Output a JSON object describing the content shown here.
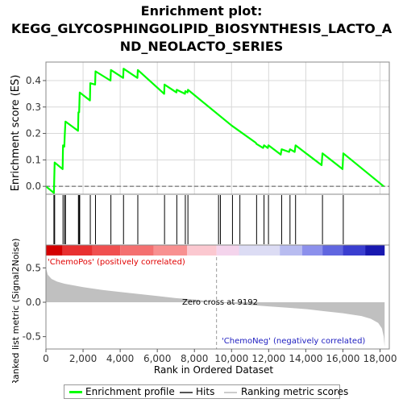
{
  "title": {
    "line1": "Enrichment plot:",
    "line2": "KEGG_GLYCOSPHINGOLIPID_BIOSYNTHESIS_LACTO_A",
    "line3": "ND_NEOLACTO_SERIES"
  },
  "colors": {
    "profile": "#00ff00",
    "metric_fill": "#c0c0c0",
    "hit": "#000000",
    "pos_label": "#e00000",
    "neg_label": "#2020c0",
    "zero_line": "#999999",
    "grid": "#d8d8d8"
  },
  "legend": {
    "profile": "Enrichment profile",
    "hits": "Hits",
    "metric": "Ranking metric scores"
  },
  "annotations": {
    "pos": "'ChemoPos' (positively correlated)",
    "neg": "'ChemoNeg' (negatively correlated)",
    "zero_cross": "Zero cross at 9192"
  },
  "chart_data": {
    "type": "line",
    "xlabel": "Rank in Ordered Dataset",
    "xlim": [
      0,
      18500
    ],
    "x_ticks": [
      0,
      2000,
      4000,
      6000,
      8000,
      10000,
      12000,
      14000,
      16000,
      18000
    ],
    "x_tick_labels": [
      "0",
      "2,000",
      "4,000",
      "6,000",
      "8,000",
      "10,000",
      "12,000",
      "14,000",
      "16,000",
      "18,000"
    ],
    "zero_cross": 9192,
    "max_rank": 18250,
    "es_panel": {
      "ylabel": "Enrichment score (ES)",
      "ylim": [
        -0.03,
        0.47
      ],
      "y_ticks": [
        0.0,
        0.1,
        0.2,
        0.3,
        0.4
      ],
      "y_tick_labels": [
        "0.0",
        "0.1",
        "0.2",
        "0.3",
        "0.4"
      ],
      "series": [
        {
          "name": "Enrichment profile",
          "x": [
            0,
            430,
            470,
            900,
            920,
            990,
            1010,
            1050,
            1730,
            1750,
            1790,
            1820,
            2370,
            2390,
            2650,
            2670,
            3480,
            3500,
            4160,
            4180,
            4930,
            4950,
            6370,
            6390,
            7030,
            7050,
            7490,
            7510,
            7630,
            7650,
            10000,
            11300,
            11350,
            11700,
            11750,
            11950,
            11990,
            12650,
            12700,
            13100,
            13150,
            13400,
            13450,
            14850,
            14900,
            15980,
            16020,
            18200
          ],
          "y": [
            0.0,
            -0.025,
            0.09,
            0.065,
            0.155,
            0.15,
            0.19,
            0.245,
            0.21,
            0.28,
            0.28,
            0.355,
            0.325,
            0.39,
            0.385,
            0.435,
            0.4,
            0.44,
            0.41,
            0.445,
            0.41,
            0.44,
            0.35,
            0.385,
            0.355,
            0.365,
            0.35,
            0.36,
            0.355,
            0.365,
            0.23,
            0.165,
            0.16,
            0.145,
            0.155,
            0.145,
            0.155,
            0.12,
            0.14,
            0.13,
            0.14,
            0.13,
            0.155,
            0.08,
            0.125,
            0.065,
            0.125,
            0.0
          ]
        }
      ]
    },
    "hits": [
      430,
      470,
      920,
      1010,
      1050,
      1750,
      1790,
      1820,
      2390,
      2670,
      3500,
      4180,
      4950,
      6390,
      7050,
      7510,
      7650,
      9300,
      9400,
      10050,
      10450,
      11350,
      11750,
      11990,
      12700,
      13150,
      13450,
      14900,
      16020
    ],
    "metric_panel": {
      "ylabel": "Ranked list metric (Signal2Noise)",
      "ylim": [
        -0.68,
        0.68
      ],
      "y_ticks": [
        -0.5,
        0.0,
        0.5
      ],
      "y_tick_labels": [
        "-0.5",
        "0.0",
        "0.5"
      ],
      "series": [
        {
          "name": "Ranking metric scores",
          "x": [
            0,
            100,
            300,
            600,
            1000,
            2000,
            3000,
            4000,
            5000,
            6000,
            7000,
            8000,
            9192,
            10000,
            11000,
            12000,
            13000,
            14000,
            15000,
            16000,
            17000,
            17500,
            17900,
            18100,
            18200,
            18250
          ],
          "y": [
            0.5,
            0.4,
            0.34,
            0.3,
            0.27,
            0.22,
            0.18,
            0.15,
            0.12,
            0.09,
            0.06,
            0.04,
            0.0,
            -0.02,
            -0.04,
            -0.06,
            -0.08,
            -0.1,
            -0.13,
            -0.16,
            -0.2,
            -0.24,
            -0.3,
            -0.38,
            -0.5,
            -0.65
          ]
        }
      ]
    },
    "heatmap_bands": [
      {
        "from": 0,
        "to": 900,
        "color": "#d40000"
      },
      {
        "from": 900,
        "to": 2500,
        "color": "#e83030"
      },
      {
        "from": 2500,
        "to": 4000,
        "color": "#f05050"
      },
      {
        "from": 4000,
        "to": 5800,
        "color": "#f47070"
      },
      {
        "from": 5800,
        "to": 7600,
        "color": "#f89090"
      },
      {
        "from": 7600,
        "to": 9192,
        "color": "#fbc8d0"
      },
      {
        "from": 9192,
        "to": 10400,
        "color": "#f4d4ec"
      },
      {
        "from": 10400,
        "to": 12600,
        "color": "#dcdcf4"
      },
      {
        "from": 12600,
        "to": 13800,
        "color": "#b8bcf0"
      },
      {
        "from": 13800,
        "to": 14900,
        "color": "#8c90ec"
      },
      {
        "from": 14900,
        "to": 16000,
        "color": "#6066e0"
      },
      {
        "from": 16000,
        "to": 17200,
        "color": "#3a3ed0"
      },
      {
        "from": 17200,
        "to": 18250,
        "color": "#1818b0"
      }
    ]
  }
}
